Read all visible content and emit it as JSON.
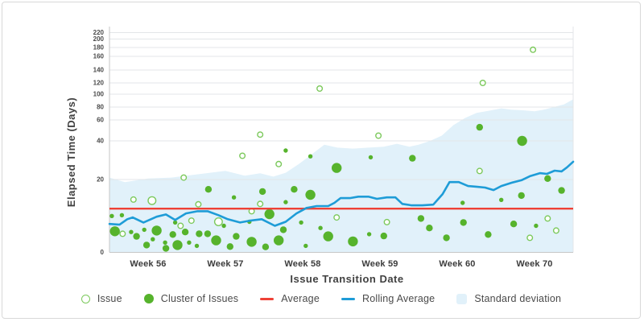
{
  "chart_data": {
    "type": "scatter",
    "xlabel": "Issue Transition Date",
    "ylabel": "Elapsed Time (Days)",
    "x_tick_labels": [
      "Week 56",
      "Week 57",
      "Week 58",
      "Week 59",
      "Week 60",
      "Week 70"
    ],
    "y_ticks": [
      0,
      20,
      40,
      60,
      80,
      100,
      120,
      140,
      160,
      180,
      200,
      220
    ],
    "y_range": [
      0,
      220
    ],
    "x_range_weeks": [
      0,
      6
    ],
    "grid": true,
    "legend_position": "bottom",
    "average": 12,
    "point_format": [
      "x_week_units",
      "elapsed_days",
      "size"
    ],
    "series": [
      {
        "name": "Issue",
        "type": "scatter",
        "style": "open-circle",
        "points": [
          [
            0.17,
            5.1,
            "s"
          ],
          [
            0.31,
            14.5,
            "s"
          ],
          [
            0.55,
            14.2,
            "m"
          ],
          [
            0.92,
            7.3,
            "s"
          ],
          [
            0.96,
            21,
            "s"
          ],
          [
            1.06,
            8.7,
            "s"
          ],
          [
            1.15,
            13.2,
            "s"
          ],
          [
            1.41,
            8.4,
            "m"
          ],
          [
            1.72,
            32.3,
            "s"
          ],
          [
            1.84,
            11.3,
            "s"
          ],
          [
            1.95,
            13.3,
            "s"
          ],
          [
            1.95,
            46,
            "s"
          ],
          [
            2.19,
            28,
            "s"
          ],
          [
            2.72,
            110,
            "s"
          ],
          [
            2.94,
            9.6,
            "s"
          ],
          [
            3.48,
            45,
            "s"
          ],
          [
            3.59,
            8.3,
            "s"
          ],
          [
            4.79,
            24.4,
            "s"
          ],
          [
            4.83,
            120,
            "s"
          ],
          [
            5.44,
            4,
            "s"
          ],
          [
            5.48,
            175,
            "s"
          ],
          [
            5.67,
            9.3,
            "s"
          ],
          [
            5.78,
            6,
            "s"
          ]
        ]
      },
      {
        "name": "Cluster of Issues",
        "type": "scatter",
        "style": "filled-circle",
        "points": [
          [
            0.03,
            10,
            "s"
          ],
          [
            0.07,
            5.8,
            "l"
          ],
          [
            0.16,
            10.2,
            "s"
          ],
          [
            0.28,
            5.6,
            "s"
          ],
          [
            0.35,
            4.4,
            "m"
          ],
          [
            0.45,
            6.2,
            "s"
          ],
          [
            0.48,
            2,
            "m"
          ],
          [
            0.56,
            3.6,
            "s"
          ],
          [
            0.61,
            6,
            "l"
          ],
          [
            0.72,
            2.7,
            "s"
          ],
          [
            0.73,
            1.1,
            "m"
          ],
          [
            0.82,
            4.9,
            "m"
          ],
          [
            0.85,
            8.2,
            "s"
          ],
          [
            0.88,
            2,
            "l"
          ],
          [
            0.98,
            5.6,
            "m"
          ],
          [
            1.03,
            2.7,
            "s"
          ],
          [
            1.13,
            1.8,
            "s"
          ],
          [
            1.16,
            5.1,
            "m"
          ],
          [
            1.27,
            5.1,
            "m"
          ],
          [
            1.28,
            17.3,
            "m"
          ],
          [
            1.38,
            3.3,
            "l"
          ],
          [
            1.48,
            7.3,
            "s"
          ],
          [
            1.56,
            1.6,
            "m"
          ],
          [
            1.61,
            15.1,
            "s"
          ],
          [
            1.64,
            4.4,
            "m"
          ],
          [
            1.81,
            8.4,
            "s"
          ],
          [
            1.84,
            2.9,
            "l"
          ],
          [
            1.98,
            16.7,
            "m"
          ],
          [
            2.02,
            1.5,
            "m"
          ],
          [
            2.07,
            10.5,
            "l"
          ],
          [
            2.19,
            3.3,
            "l"
          ],
          [
            2.25,
            6.2,
            "m"
          ],
          [
            2.28,
            13.8,
            "s"
          ],
          [
            2.28,
            35,
            "s"
          ],
          [
            2.39,
            17.3,
            "m"
          ],
          [
            2.48,
            8.2,
            "s"
          ],
          [
            2.54,
            1.8,
            "s"
          ],
          [
            2.6,
            32,
            "s"
          ],
          [
            2.6,
            15.8,
            "l"
          ],
          [
            2.73,
            6.7,
            "s"
          ],
          [
            2.83,
            4.4,
            "l"
          ],
          [
            2.94,
            26,
            "l"
          ],
          [
            3.15,
            3,
            "l"
          ],
          [
            3.36,
            5,
            "s"
          ],
          [
            3.38,
            31.5,
            "s"
          ],
          [
            3.55,
            4.5,
            "m"
          ],
          [
            3.92,
            31,
            "m"
          ],
          [
            4.03,
            9.3,
            "m"
          ],
          [
            4.14,
            6.7,
            "m"
          ],
          [
            4.36,
            4,
            "m"
          ],
          [
            4.57,
            13.6,
            "s"
          ],
          [
            4.58,
            8.2,
            "m"
          ],
          [
            4.79,
            53,
            "m"
          ],
          [
            4.9,
            4.9,
            "m"
          ],
          [
            5.07,
            14.4,
            "s"
          ],
          [
            5.23,
            7.8,
            "m"
          ],
          [
            5.33,
            15.6,
            "m"
          ],
          [
            5.34,
            40,
            "l"
          ],
          [
            5.52,
            7.3,
            "s"
          ],
          [
            5.67,
            20.5,
            "m"
          ],
          [
            5.85,
            17,
            "m"
          ]
        ]
      },
      {
        "name": "Average",
        "type": "hline",
        "y": 12
      },
      {
        "name": "Rolling Average",
        "type": "line",
        "points": [
          [
            0,
            7.8
          ],
          [
            0.13,
            7.6
          ],
          [
            0.23,
            9.1
          ],
          [
            0.3,
            9.6
          ],
          [
            0.44,
            8.2
          ],
          [
            0.61,
            9.8
          ],
          [
            0.73,
            10.4
          ],
          [
            0.85,
            8.9
          ],
          [
            0.99,
            10.7
          ],
          [
            1.14,
            11.3
          ],
          [
            1.27,
            11.3
          ],
          [
            1.41,
            10.2
          ],
          [
            1.53,
            9.1
          ],
          [
            1.69,
            8.2
          ],
          [
            1.82,
            8.7
          ],
          [
            1.97,
            9.1
          ],
          [
            2.14,
            7.3
          ],
          [
            2.28,
            8.4
          ],
          [
            2.42,
            10.7
          ],
          [
            2.55,
            12.2
          ],
          [
            2.68,
            12.7
          ],
          [
            2.83,
            12.7
          ],
          [
            2.91,
            13.6
          ],
          [
            2.99,
            14.9
          ],
          [
            3.11,
            14.9
          ],
          [
            3.22,
            15.3
          ],
          [
            3.35,
            15.3
          ],
          [
            3.46,
            14.7
          ],
          [
            3.59,
            15.1
          ],
          [
            3.7,
            15.1
          ],
          [
            3.79,
            13.3
          ],
          [
            3.91,
            12.9
          ],
          [
            4.05,
            12.9
          ],
          [
            4.19,
            13.1
          ],
          [
            4.31,
            16
          ],
          [
            4.4,
            19.3
          ],
          [
            4.52,
            19.3
          ],
          [
            4.64,
            18.2
          ],
          [
            4.76,
            18
          ],
          [
            4.86,
            17.8
          ],
          [
            4.97,
            17.1
          ],
          [
            5.07,
            18.2
          ],
          [
            5.2,
            19.1
          ],
          [
            5.33,
            19.8
          ],
          [
            5.44,
            21.7
          ],
          [
            5.57,
            23.3
          ],
          [
            5.66,
            22.9
          ],
          [
            5.76,
            24.6
          ],
          [
            5.85,
            24.2
          ],
          [
            5.92,
            26.3
          ],
          [
            6,
            29.2
          ]
        ]
      },
      {
        "name": "Standard deviation",
        "type": "band",
        "y_bottom": 0,
        "top_edge": [
          [
            0,
            21
          ],
          [
            0.2,
            19.3
          ],
          [
            0.5,
            20.5
          ],
          [
            0.8,
            21
          ],
          [
            1.1,
            22.5
          ],
          [
            1.3,
            23.5
          ],
          [
            1.5,
            24.5
          ],
          [
            1.75,
            22
          ],
          [
            1.95,
            23.2
          ],
          [
            2.12,
            21.5
          ],
          [
            2.28,
            23.5
          ],
          [
            2.45,
            28
          ],
          [
            2.6,
            32.5
          ],
          [
            2.78,
            38
          ],
          [
            2.95,
            36.5
          ],
          [
            3.15,
            36
          ],
          [
            3.35,
            36.5
          ],
          [
            3.55,
            37
          ],
          [
            3.72,
            38.5
          ],
          [
            3.88,
            37
          ],
          [
            4.0,
            38
          ],
          [
            4.15,
            40
          ],
          [
            4.3,
            45
          ],
          [
            4.45,
            55
          ],
          [
            4.6,
            63
          ],
          [
            4.75,
            71
          ],
          [
            4.9,
            74
          ],
          [
            5.07,
            78
          ],
          [
            5.2,
            76
          ],
          [
            5.35,
            75
          ],
          [
            5.5,
            73.5
          ],
          [
            5.62,
            76
          ],
          [
            5.75,
            80
          ],
          [
            5.88,
            84
          ],
          [
            6,
            92
          ]
        ]
      }
    ],
    "legend": [
      "Issue",
      "Cluster of Issues",
      "Average",
      "Rolling Average",
      "Standard deviation"
    ]
  },
  "colors": {
    "cluster_green": "#56b32c",
    "issue_open_green": "#7cc95c",
    "average_red": "#ee4136",
    "rolling_average_blue": "#1e9cd7",
    "std_band_blue": "#e1f1fa",
    "gridline": "#e3e6e8",
    "axis_line": "#c6c6c6"
  }
}
